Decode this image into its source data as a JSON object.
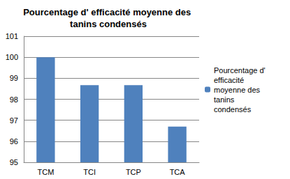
{
  "chart_data": {
    "type": "bar",
    "title": "Pourcentage d' efficacité moyenne des tanins condensés",
    "categories": [
      "TCM",
      "TCI",
      "TCP",
      "TCA"
    ],
    "series": [
      {
        "name": "Pourcentage d' efficacité moyenne des tanins condensés",
        "color": "#4f81bd",
        "values": [
          100,
          98.67,
          98.67,
          96.7
        ]
      }
    ],
    "ylim": [
      95,
      101
    ],
    "yticks": [
      95,
      96,
      97,
      98,
      99,
      100,
      101
    ],
    "grid": true,
    "legend": "right"
  }
}
